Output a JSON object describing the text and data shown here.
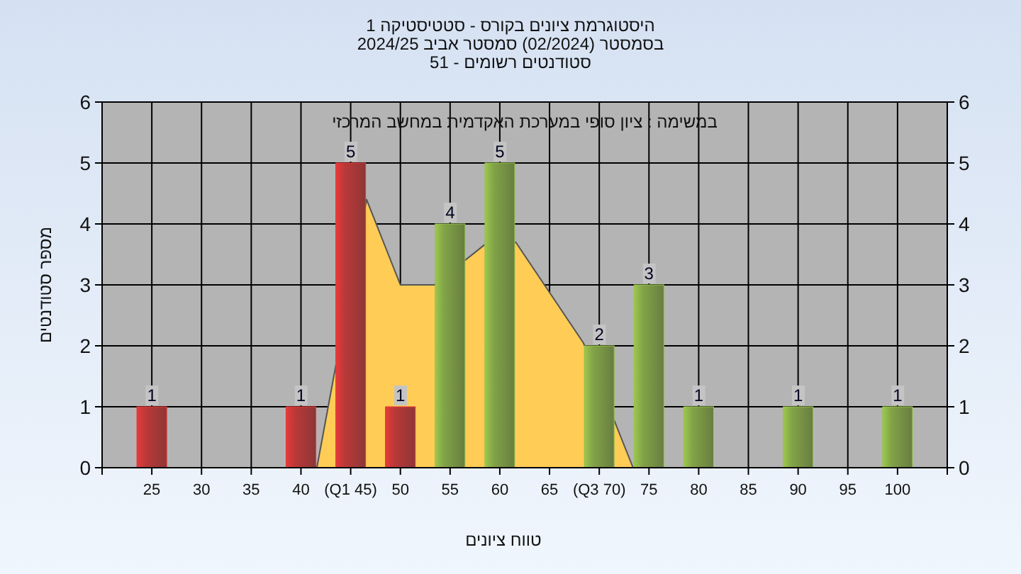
{
  "chart_data": {
    "type": "bar",
    "title": "היסטוגרמת ציונים בקורס - סטטיסטיקה 1",
    "subtitle": "בסמסטר  (02/2024)  סמסטר אביב 2024/25\nסטודנטים רשומים - 51",
    "xlabel": "טווח ציונים",
    "ylabel": "מספר סטודנטים",
    "annotations": [
      "במשימה : ציון סופי במערכת האקדמית במחשב המרכזי"
    ],
    "series": [
      {
        "type": "area",
        "color": "#ffcc55",
        "x": [
          41.6,
          46.6,
          50,
          53.4,
          58.4,
          61.6,
          68.4,
          73.4
        ],
        "values": [
          0,
          4.4,
          3,
          3,
          3.65,
          3.7,
          2.05,
          0
        ]
      },
      {
        "x": [
          25,
          30,
          35,
          40,
          45,
          50,
          55,
          60,
          65,
          70,
          75,
          80,
          85,
          90,
          95,
          100
        ],
        "values": [
          1,
          0,
          0,
          1,
          5,
          1,
          4,
          5,
          0,
          2,
          3,
          1,
          0,
          1,
          0,
          1
        ],
        "colors": [
          "#e83a3a",
          "#e83a3a",
          "#e83a3a",
          "#e83a3a",
          "#e83a3a",
          "#e83a3a",
          "#9cc84e",
          "#9cc84e",
          "#9cc84e",
          "#9cc84e",
          "#9cc84e",
          "#9cc84e",
          "#9cc84e",
          "#9cc84e",
          "#9cc84e",
          "#9cc84e"
        ],
        "value_labels": [
          "1",
          null,
          null,
          "1",
          "5",
          "1",
          "4",
          "5",
          null,
          "2",
          "3",
          "1",
          null,
          "1",
          null,
          "1"
        ]
      }
    ],
    "xlim": [
      20,
      105
    ],
    "xticks": [
      {
        "value": 20,
        "label": null
      },
      25,
      30,
      35,
      40,
      {
        "value": 45,
        "label": "(Q1 45)"
      },
      50,
      55,
      60,
      65,
      {
        "value": 70,
        "label": "(Q3 70)"
      },
      75,
      80,
      85,
      90,
      95,
      100,
      {
        "value": 105,
        "label": null
      }
    ],
    "ylim": [
      0,
      6
    ],
    "yticks": [
      0,
      1,
      2,
      3,
      4,
      5,
      6
    ],
    "y2lim": [
      0,
      6
    ],
    "y2ticks": [
      0,
      1,
      2,
      3,
      4,
      5,
      6
    ],
    "grid": true
  }
}
